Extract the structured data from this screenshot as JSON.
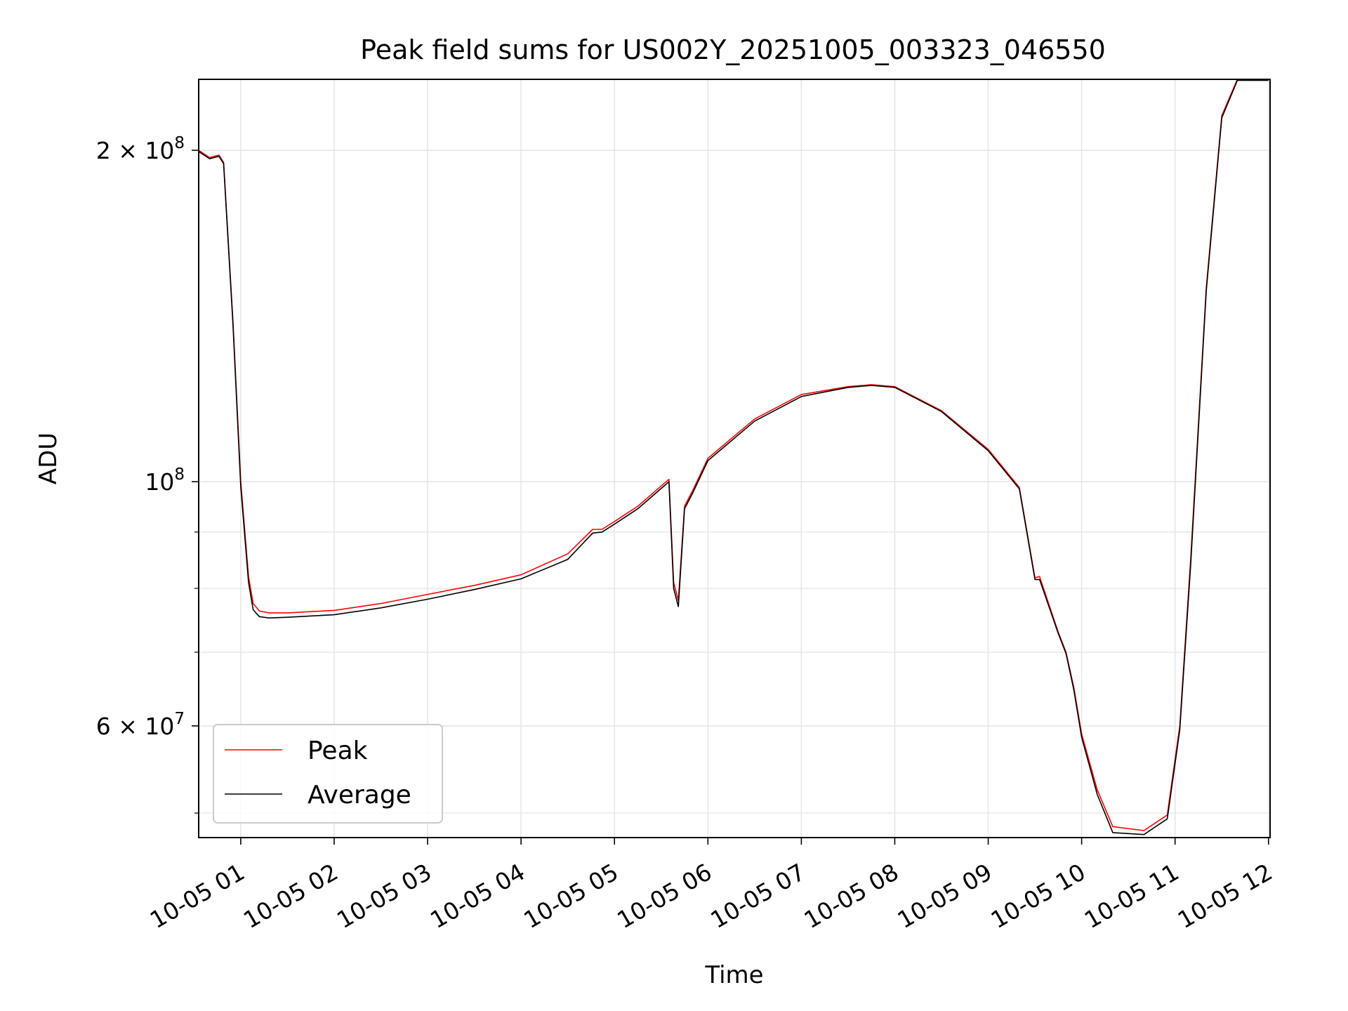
{
  "chart_data": {
    "type": "line",
    "title": "Peak field sums for US002Y_20251005_003323_046550",
    "xlabel": "Time",
    "ylabel": "ADU",
    "yscale": "log",
    "xlim": [
      "2025-10-05 00:33",
      "2025-10-05 12:01"
    ],
    "ylim": [
      47500000,
      232000000
    ],
    "grid": true,
    "legend_position": "lower-left",
    "x_ticks": [
      {
        "t": "2025-10-05 01:00",
        "label": "10-05 01"
      },
      {
        "t": "2025-10-05 02:00",
        "label": "10-05 02"
      },
      {
        "t": "2025-10-05 03:00",
        "label": "10-05 03"
      },
      {
        "t": "2025-10-05 04:00",
        "label": "10-05 04"
      },
      {
        "t": "2025-10-05 05:00",
        "label": "10-05 05"
      },
      {
        "t": "2025-10-05 06:00",
        "label": "10-05 06"
      },
      {
        "t": "2025-10-05 07:00",
        "label": "10-05 07"
      },
      {
        "t": "2025-10-05 08:00",
        "label": "10-05 08"
      },
      {
        "t": "2025-10-05 09:00",
        "label": "10-05 09"
      },
      {
        "t": "2025-10-05 10:00",
        "label": "10-05 10"
      },
      {
        "t": "2025-10-05 11:00",
        "label": "10-05 11"
      },
      {
        "t": "2025-10-05 12:00",
        "label": "10-05 12"
      }
    ],
    "y_major_ticks": [
      {
        "value": 100000000,
        "base": "10",
        "exp": "8"
      },
      {
        "value": 200000000,
        "base": "2 × 10",
        "exp": "8"
      },
      {
        "value": 60000000,
        "base": "6 × 10",
        "exp": "7"
      }
    ],
    "y_minor_ticks": [
      50000000,
      70000000,
      80000000,
      90000000
    ],
    "series": [
      {
        "name": "Peak",
        "color": "#ff0000",
        "x": [
          "2025-10-05 00:33",
          "2025-10-05 00:40",
          "2025-10-05 00:46",
          "2025-10-05 00:49",
          "2025-10-05 00:55",
          "2025-10-05 01:00",
          "2025-10-05 01:05",
          "2025-10-05 01:08",
          "2025-10-05 01:12",
          "2025-10-05 01:18",
          "2025-10-05 01:30",
          "2025-10-05 02:00",
          "2025-10-05 02:30",
          "2025-10-05 03:00",
          "2025-10-05 03:30",
          "2025-10-05 04:00",
          "2025-10-05 04:30",
          "2025-10-05 04:46",
          "2025-10-05 04:52",
          "2025-10-05 05:00",
          "2025-10-05 05:15",
          "2025-10-05 05:35",
          "2025-10-05 05:38",
          "2025-10-05 05:41",
          "2025-10-05 05:45",
          "2025-10-05 05:50",
          "2025-10-05 06:00",
          "2025-10-05 06:30",
          "2025-10-05 07:00",
          "2025-10-05 07:30",
          "2025-10-05 07:45",
          "2025-10-05 08:00",
          "2025-10-05 08:30",
          "2025-10-05 09:00",
          "2025-10-05 09:20",
          "2025-10-05 09:30",
          "2025-10-05 09:33",
          "2025-10-05 09:45",
          "2025-10-05 09:50",
          "2025-10-05 09:55",
          "2025-10-05 10:00",
          "2025-10-05 10:10",
          "2025-10-05 10:20",
          "2025-10-05 10:40",
          "2025-10-05 10:55",
          "2025-10-05 11:03",
          "2025-10-05 11:10",
          "2025-10-05 11:20",
          "2025-10-05 11:30",
          "2025-10-05 11:40",
          "2025-10-05 11:50",
          "2025-10-05 12:00"
        ],
        "values": [
          200000000,
          197000000,
          198000000,
          195000000,
          140000000,
          100000000,
          82000000,
          77500000,
          76300000,
          76000000,
          76000000,
          76400000,
          77500000,
          79000000,
          80500000,
          82300000,
          86000000,
          90500000,
          90500000,
          92000000,
          95000000,
          100500000,
          81000000,
          78000000,
          95000000,
          98000000,
          105000000,
          114000000,
          120000000,
          122000000,
          122500000,
          122000000,
          116000000,
          107000000,
          98800000,
          81800000,
          82000000,
          73000000,
          70000000,
          65000000,
          59000000,
          52500000,
          48600000,
          48200000,
          49800000,
          60000000,
          85000000,
          150000000,
          215000000,
          232000000,
          232000000,
          232000000
        ]
      },
      {
        "name": "Average",
        "color": "#000000",
        "x": [
          "2025-10-05 00:33",
          "2025-10-05 00:40",
          "2025-10-05 00:46",
          "2025-10-05 00:49",
          "2025-10-05 00:55",
          "2025-10-05 01:00",
          "2025-10-05 01:05",
          "2025-10-05 01:08",
          "2025-10-05 01:12",
          "2025-10-05 01:18",
          "2025-10-05 01:30",
          "2025-10-05 02:00",
          "2025-10-05 02:30",
          "2025-10-05 03:00",
          "2025-10-05 03:30",
          "2025-10-05 04:00",
          "2025-10-05 04:30",
          "2025-10-05 04:46",
          "2025-10-05 04:52",
          "2025-10-05 05:00",
          "2025-10-05 05:15",
          "2025-10-05 05:35",
          "2025-10-05 05:38",
          "2025-10-05 05:41",
          "2025-10-05 05:45",
          "2025-10-05 05:50",
          "2025-10-05 06:00",
          "2025-10-05 06:30",
          "2025-10-05 07:00",
          "2025-10-05 07:30",
          "2025-10-05 07:45",
          "2025-10-05 08:00",
          "2025-10-05 08:30",
          "2025-10-05 09:00",
          "2025-10-05 09:20",
          "2025-10-05 09:30",
          "2025-10-05 09:33",
          "2025-10-05 09:45",
          "2025-10-05 09:50",
          "2025-10-05 09:55",
          "2025-10-05 10:00",
          "2025-10-05 10:10",
          "2025-10-05 10:20",
          "2025-10-05 10:40",
          "2025-10-05 10:55",
          "2025-10-05 11:03",
          "2025-10-05 11:10",
          "2025-10-05 11:20",
          "2025-10-05 11:30",
          "2025-10-05 11:40",
          "2025-10-05 11:50",
          "2025-10-05 12:00"
        ],
        "values": [
          199500000,
          196500000,
          197500000,
          194500000,
          139000000,
          99000000,
          81000000,
          76500000,
          75400000,
          75200000,
          75300000,
          75700000,
          76800000,
          78200000,
          79800000,
          81600000,
          85000000,
          89800000,
          90000000,
          91500000,
          94500000,
          100000000,
          80000000,
          77000000,
          94500000,
          97500000,
          104500000,
          113500000,
          119500000,
          121800000,
          122300000,
          121800000,
          115800000,
          106700000,
          98500000,
          81500000,
          81500000,
          72800000,
          69800000,
          64700000,
          58600000,
          52000000,
          48000000,
          47800000,
          49400000,
          59500000,
          84000000,
          149000000,
          214000000,
          231500000,
          231500000,
          231500000
        ]
      }
    ]
  }
}
